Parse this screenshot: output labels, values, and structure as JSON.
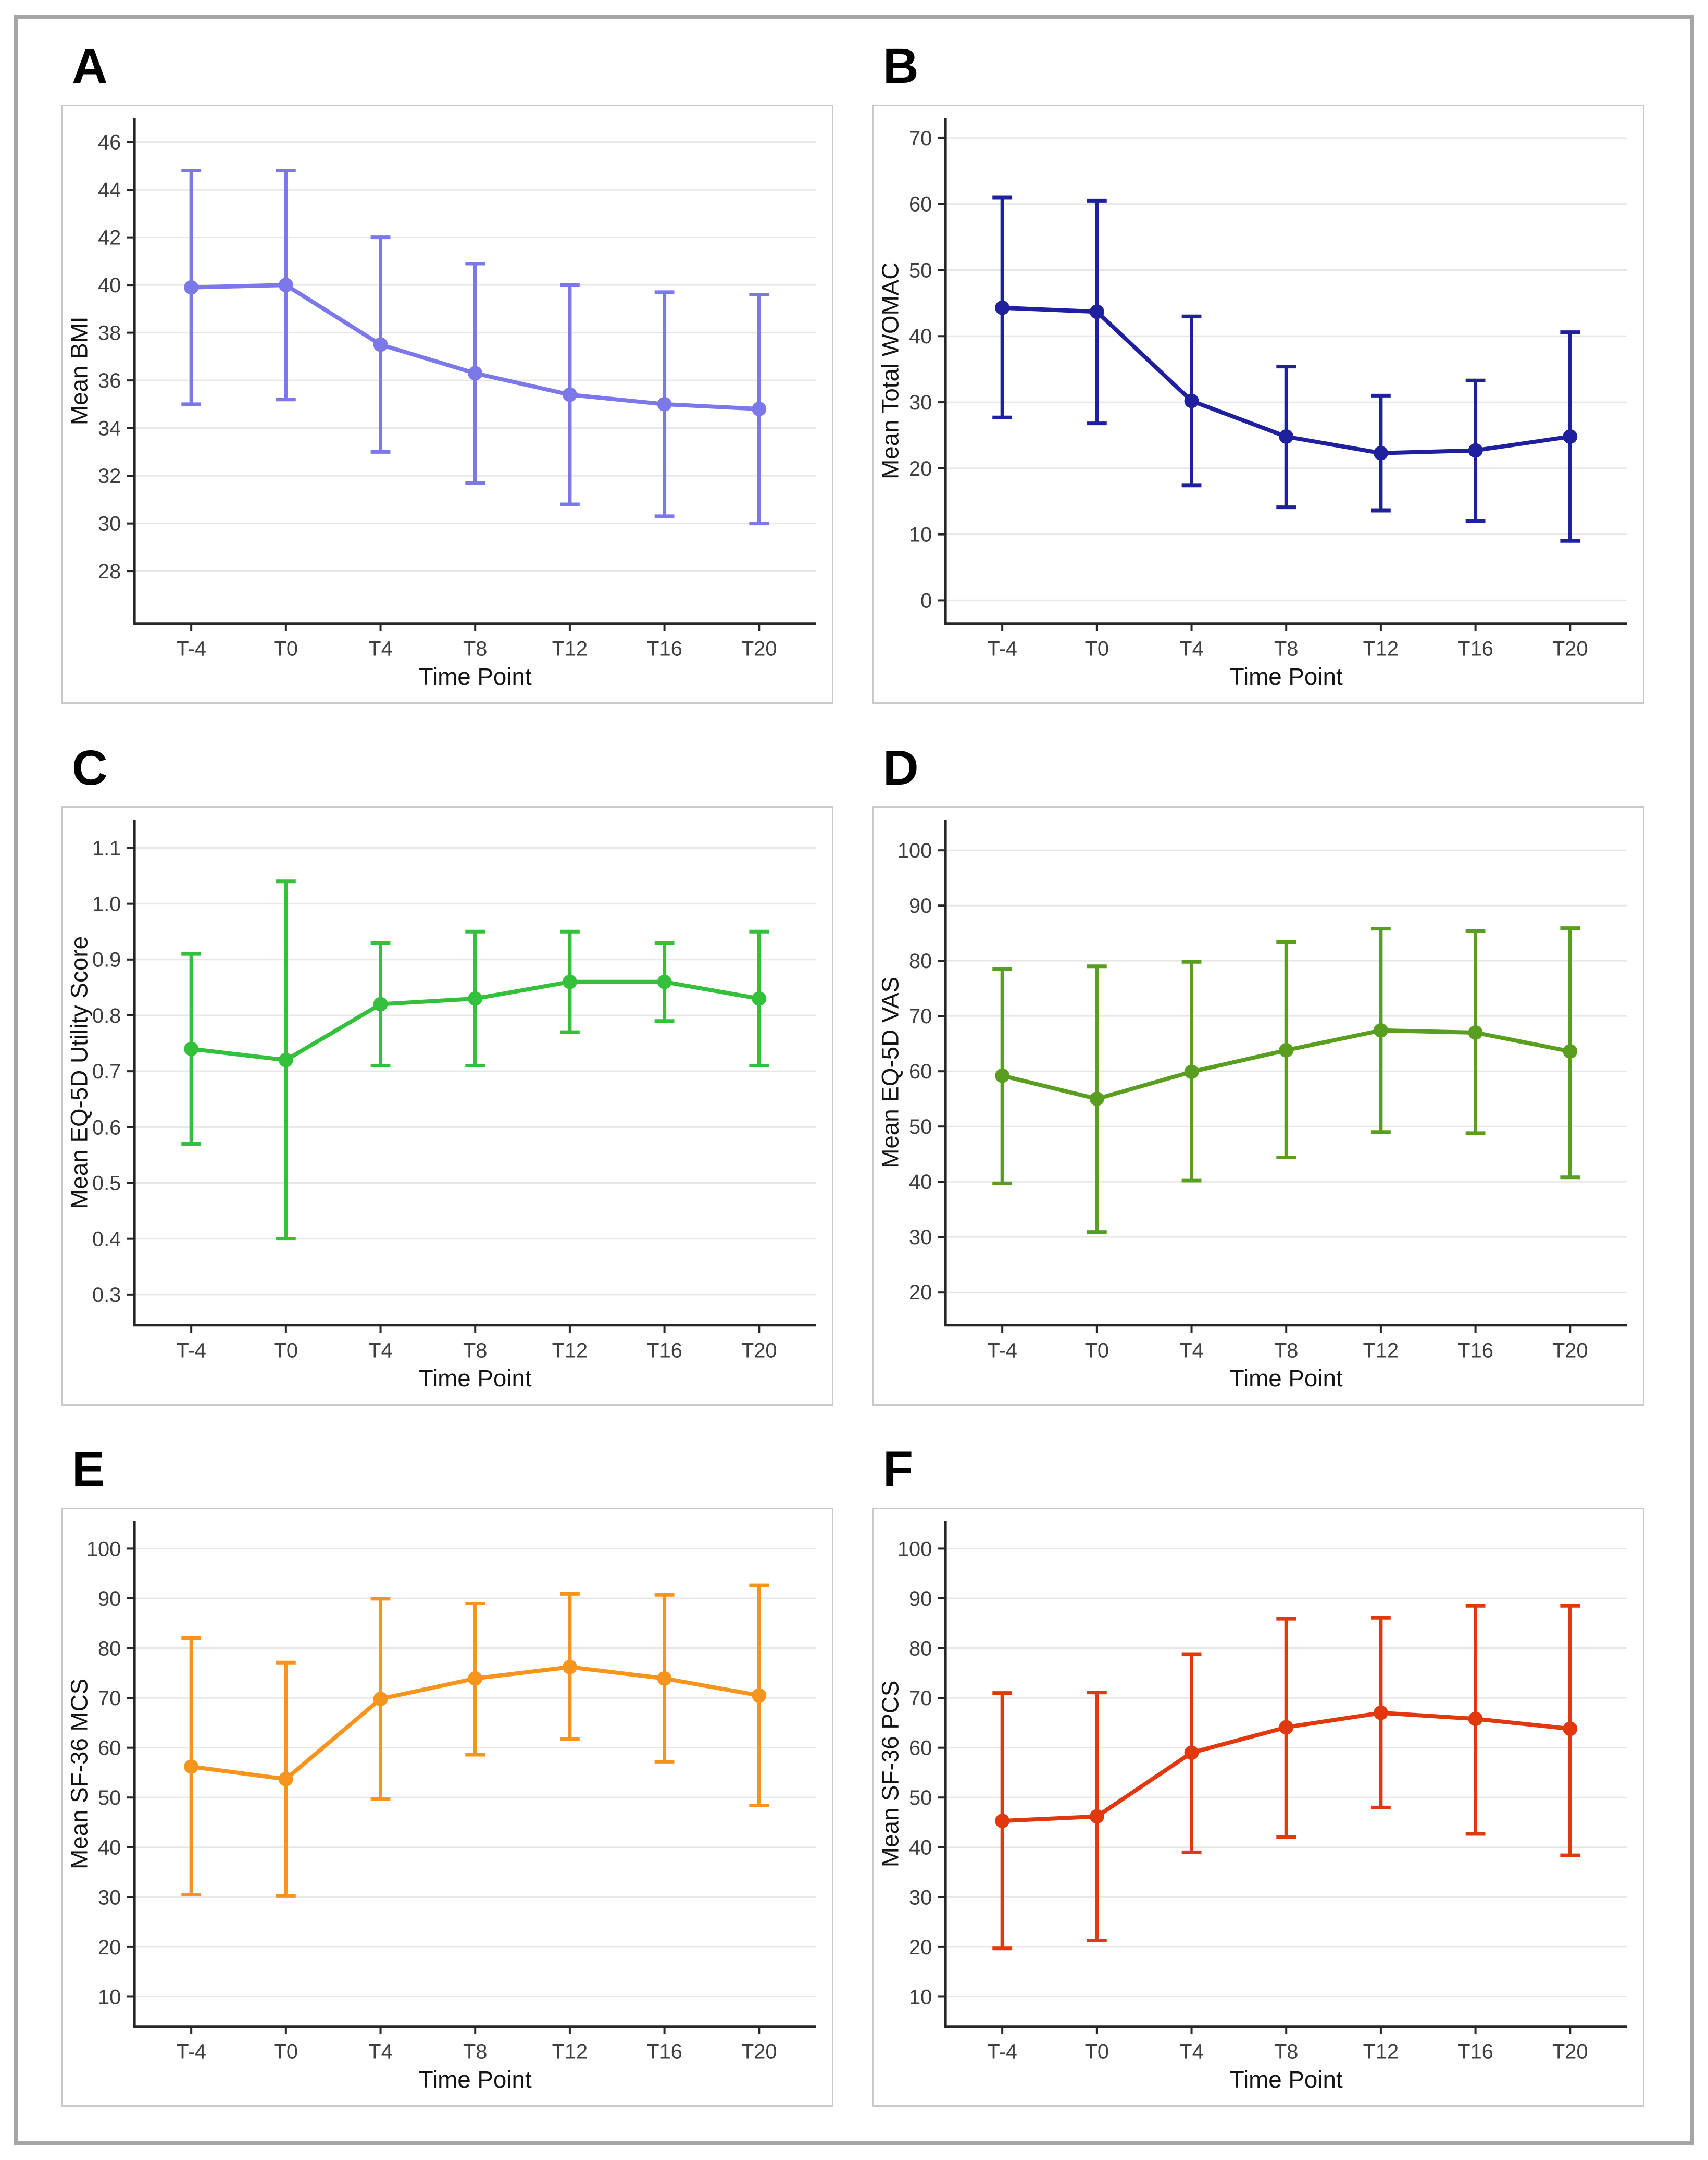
{
  "figure": {
    "background": "#ffffff",
    "panel_letters": [
      "A",
      "B",
      "C",
      "D",
      "E",
      "F"
    ]
  },
  "chart_style": {
    "grid_color": "#e7e7e7",
    "axis_color": "#262626",
    "tick_label_color": "#3f3f3f",
    "title_color": "#141414",
    "panel_border_color": "#c9c9c9",
    "frame_border_color": "#a6a6a6"
  },
  "chart_data": [
    {
      "type": "line",
      "panel_label": "A",
      "ylabel": "Mean BMI",
      "xlabel": "Time Point",
      "color": "#7c78e9",
      "legend": "none",
      "grid": "horizontal",
      "categories": [
        "T-4",
        "T0",
        "T4",
        "T8",
        "T12",
        "T16",
        "T20"
      ],
      "values": [
        39.9,
        40.0,
        37.5,
        36.3,
        35.4,
        35.0,
        34.8
      ],
      "error_lower": [
        35.0,
        35.2,
        33.0,
        31.7,
        30.8,
        30.3,
        30.0
      ],
      "error_upper": [
        44.8,
        44.8,
        42.0,
        40.9,
        40.0,
        39.7,
        39.6
      ],
      "yticks": [
        "28",
        "30",
        "32",
        "34",
        "36",
        "38",
        "40",
        "42",
        "44",
        "46"
      ],
      "ylim": [
        25.8,
        47.0
      ]
    },
    {
      "type": "line",
      "panel_label": "B",
      "ylabel": "Mean Total WOMAC",
      "xlabel": "Time Point",
      "color": "#1f209e",
      "legend": "none",
      "grid": "horizontal",
      "categories": [
        "T-4",
        "T0",
        "T4",
        "T8",
        "T12",
        "T16",
        "T20"
      ],
      "values": [
        44.3,
        43.7,
        30.2,
        24.8,
        22.3,
        22.7,
        24.8
      ],
      "error_lower": [
        27.7,
        26.8,
        17.4,
        14.1,
        13.6,
        12.0,
        9.0
      ],
      "error_upper": [
        61.0,
        60.5,
        43.0,
        35.4,
        31.0,
        33.3,
        40.6
      ],
      "yticks": [
        "0",
        "10",
        "20",
        "30",
        "40",
        "50",
        "60",
        "70"
      ],
      "ylim": [
        -3.5,
        73.0
      ]
    },
    {
      "type": "line",
      "panel_label": "C",
      "ylabel": "Mean EQ-5D Utility Score",
      "xlabel": "Time Point",
      "color": "#33c13c",
      "legend": "none",
      "grid": "horizontal",
      "categories": [
        "T-4",
        "T0",
        "T4",
        "T8",
        "T12",
        "T16",
        "T20"
      ],
      "values": [
        0.74,
        0.72,
        0.82,
        0.83,
        0.86,
        0.86,
        0.83
      ],
      "error_lower": [
        0.57,
        0.4,
        0.71,
        0.71,
        0.77,
        0.79,
        0.71
      ],
      "error_upper": [
        0.91,
        1.04,
        0.93,
        0.95,
        0.95,
        0.93,
        0.95
      ],
      "yticks": [
        "0.3",
        "0.4",
        "0.5",
        "0.6",
        "0.7",
        "0.8",
        "0.9",
        "1.0",
        "1.1"
      ],
      "ylim": [
        0.245,
        1.15
      ]
    },
    {
      "type": "line",
      "panel_label": "D",
      "ylabel": "Mean EQ-5D VAS",
      "xlabel": "Time Point",
      "color": "#5a9e20",
      "legend": "none",
      "grid": "horizontal",
      "categories": [
        "T-4",
        "T0",
        "T4",
        "T8",
        "T12",
        "T16",
        "T20"
      ],
      "values": [
        59.2,
        55.0,
        59.9,
        63.8,
        67.4,
        67.0,
        63.6
      ],
      "error_lower": [
        39.7,
        30.9,
        40.2,
        44.4,
        49.0,
        48.8,
        40.8
      ],
      "error_upper": [
        78.5,
        79.0,
        79.8,
        83.4,
        85.8,
        85.4,
        85.9
      ],
      "yticks": [
        "20",
        "30",
        "40",
        "50",
        "60",
        "70",
        "80",
        "90",
        "100"
      ],
      "ylim": [
        14.0,
        105.5
      ]
    },
    {
      "type": "line",
      "panel_label": "E",
      "ylabel": "Mean SF-36 MCS",
      "xlabel": "Time Point",
      "color": "#f7941e",
      "legend": "none",
      "grid": "horizontal",
      "categories": [
        "T-4",
        "T0",
        "T4",
        "T8",
        "T12",
        "T16",
        "T20"
      ],
      "values": [
        56.2,
        53.7,
        69.8,
        73.9,
        76.2,
        73.9,
        70.5
      ],
      "error_lower": [
        30.5,
        30.2,
        49.7,
        58.6,
        61.7,
        57.2,
        48.4
      ],
      "error_upper": [
        82.0,
        77.1,
        89.9,
        89.0,
        90.9,
        90.7,
        92.6
      ],
      "yticks": [
        "10",
        "20",
        "30",
        "40",
        "50",
        "60",
        "70",
        "80",
        "90",
        "100"
      ],
      "ylim": [
        4.0,
        105.5
      ]
    },
    {
      "type": "line",
      "panel_label": "F",
      "ylabel": "Mean SF-36 PCS",
      "xlabel": "Time Point",
      "color": "#e2380e",
      "legend": "none",
      "grid": "horizontal",
      "categories": [
        "T-4",
        "T0",
        "T4",
        "T8",
        "T12",
        "T16",
        "T20"
      ],
      "values": [
        45.3,
        46.2,
        59.0,
        64.1,
        67.0,
        65.8,
        63.8
      ],
      "error_lower": [
        19.7,
        21.3,
        39.0,
        42.1,
        48.0,
        42.7,
        38.4
      ],
      "error_upper": [
        71.0,
        71.1,
        78.8,
        85.9,
        86.1,
        88.5,
        88.5
      ],
      "yticks": [
        "10",
        "20",
        "30",
        "40",
        "50",
        "60",
        "70",
        "80",
        "90",
        "100"
      ],
      "ylim": [
        4.0,
        105.5
      ]
    }
  ]
}
